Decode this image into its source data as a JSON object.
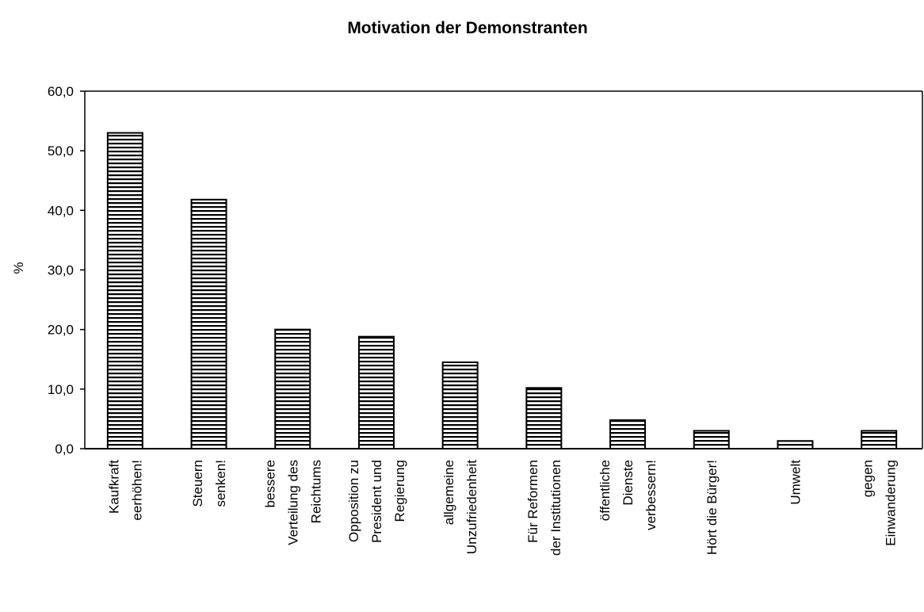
{
  "chart_data": {
    "type": "bar",
    "title": "Motivation der Demonstranten",
    "ylabel": "%",
    "xlabel": "",
    "ylim": [
      0,
      60
    ],
    "y_ticks": [
      "0,0",
      "10,0",
      "20,0",
      "30,0",
      "40,0",
      "50,0",
      "60,0"
    ],
    "y_tick_values": [
      0,
      10,
      20,
      30,
      40,
      50,
      60
    ],
    "grid": false,
    "legend": "none",
    "bar_fill": "horizontal-stripes",
    "categories": [
      [
        "Kaufkraft",
        "eerhöhen!"
      ],
      [
        "Steuern",
        "senken!"
      ],
      [
        "bessere",
        "Verteilung des",
        "Reichtums"
      ],
      [
        "Opposition zu",
        "President und",
        "Regierung"
      ],
      [
        "allgemeine",
        "Unzufriedenheit"
      ],
      [
        "Für Reformen",
        "der Institutionen"
      ],
      [
        "öffentliche",
        "Dienste",
        "verbessern!"
      ],
      [
        "Hört die Bürger!"
      ],
      [
        "Umwelt"
      ],
      [
        "gegen",
        "Einwanderung"
      ]
    ],
    "values": [
      53.0,
      41.8,
      20.0,
      18.8,
      14.5,
      10.2,
      4.8,
      3.0,
      1.3,
      3.0
    ]
  }
}
